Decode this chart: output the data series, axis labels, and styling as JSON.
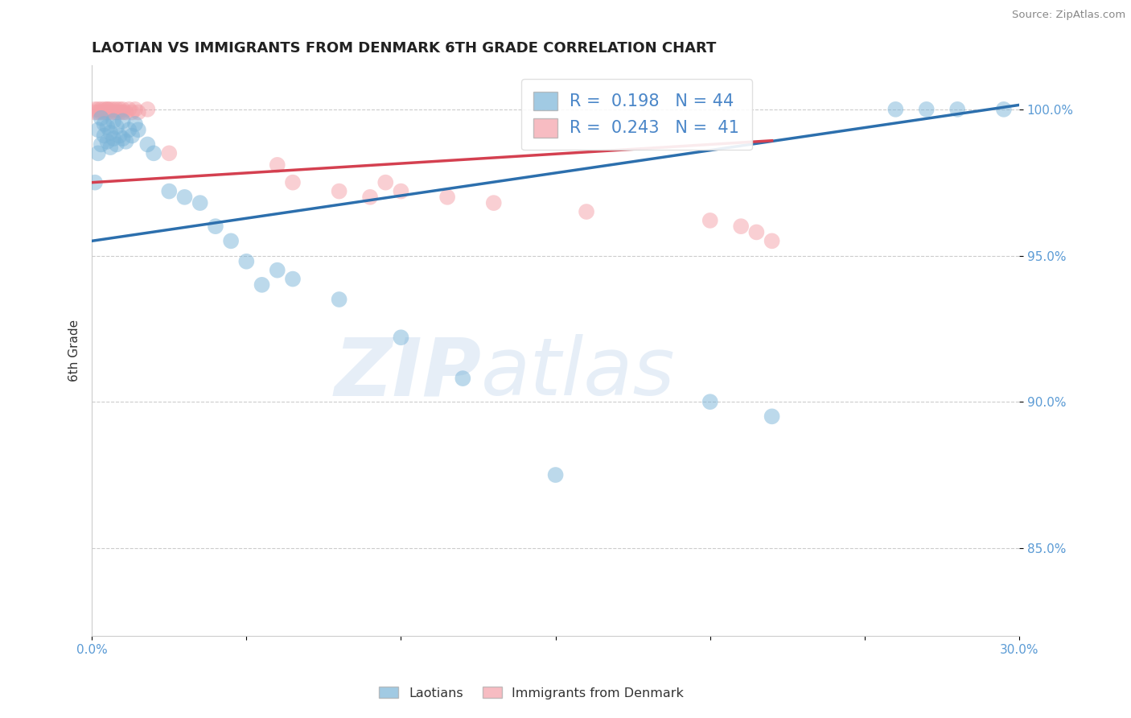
{
  "title": "LAOTIAN VS IMMIGRANTS FROM DENMARK 6TH GRADE CORRELATION CHART",
  "source": "Source: ZipAtlas.com",
  "xlabel_laotians": "Laotians",
  "xlabel_denmark": "Immigrants from Denmark",
  "ylabel": "6th Grade",
  "xlim": [
    0.0,
    0.3
  ],
  "ylim": [
    0.82,
    1.015
  ],
  "yticks": [
    0.85,
    0.9,
    0.95,
    1.0
  ],
  "ytick_labels": [
    "85.0%",
    "90.0%",
    "95.0%",
    "100.0%"
  ],
  "r_blue": 0.198,
  "n_blue": 44,
  "r_pink": 0.243,
  "n_pink": 41,
  "blue_color": "#7ab4d8",
  "pink_color": "#f4a0a8",
  "blue_line_color": "#2c6fad",
  "pink_line_color": "#d44050",
  "blue_scatter_x": [
    0.001,
    0.002,
    0.002,
    0.003,
    0.003,
    0.004,
    0.004,
    0.005,
    0.005,
    0.006,
    0.006,
    0.007,
    0.007,
    0.008,
    0.008,
    0.009,
    0.01,
    0.01,
    0.011,
    0.012,
    0.013,
    0.014,
    0.015,
    0.018,
    0.02,
    0.025,
    0.03,
    0.035,
    0.04,
    0.045,
    0.05,
    0.055,
    0.06,
    0.065,
    0.08,
    0.1,
    0.12,
    0.15,
    0.2,
    0.22,
    0.26,
    0.27,
    0.28,
    0.295
  ],
  "blue_scatter_y": [
    0.975,
    0.985,
    0.993,
    0.988,
    0.997,
    0.991,
    0.995,
    0.989,
    0.994,
    0.987,
    0.992,
    0.99,
    0.996,
    0.988,
    0.994,
    0.991,
    0.99,
    0.996,
    0.989,
    0.993,
    0.991,
    0.995,
    0.993,
    0.988,
    0.985,
    0.972,
    0.97,
    0.968,
    0.96,
    0.955,
    0.948,
    0.94,
    0.945,
    0.942,
    0.935,
    0.922,
    0.908,
    0.875,
    0.9,
    0.895,
    1.0,
    1.0,
    1.0,
    1.0
  ],
  "pink_scatter_x": [
    0.001,
    0.001,
    0.002,
    0.002,
    0.003,
    0.003,
    0.004,
    0.004,
    0.005,
    0.005,
    0.005,
    0.006,
    0.006,
    0.007,
    0.007,
    0.008,
    0.008,
    0.009,
    0.009,
    0.01,
    0.01,
    0.011,
    0.012,
    0.013,
    0.014,
    0.015,
    0.018,
    0.025,
    0.06,
    0.065,
    0.08,
    0.09,
    0.095,
    0.1,
    0.115,
    0.13,
    0.16,
    0.2,
    0.21,
    0.215,
    0.22
  ],
  "pink_scatter_y": [
    0.999,
    1.0,
    0.999,
    1.0,
    1.0,
    0.999,
    1.0,
    0.999,
    1.0,
    0.999,
    1.0,
    0.999,
    1.0,
    0.999,
    1.0,
    0.999,
    1.0,
    0.999,
    1.0,
    0.999,
    1.0,
    0.999,
    1.0,
    0.999,
    1.0,
    0.999,
    1.0,
    0.985,
    0.981,
    0.975,
    0.972,
    0.97,
    0.975,
    0.972,
    0.97,
    0.968,
    0.965,
    0.962,
    0.96,
    0.958,
    0.955
  ]
}
